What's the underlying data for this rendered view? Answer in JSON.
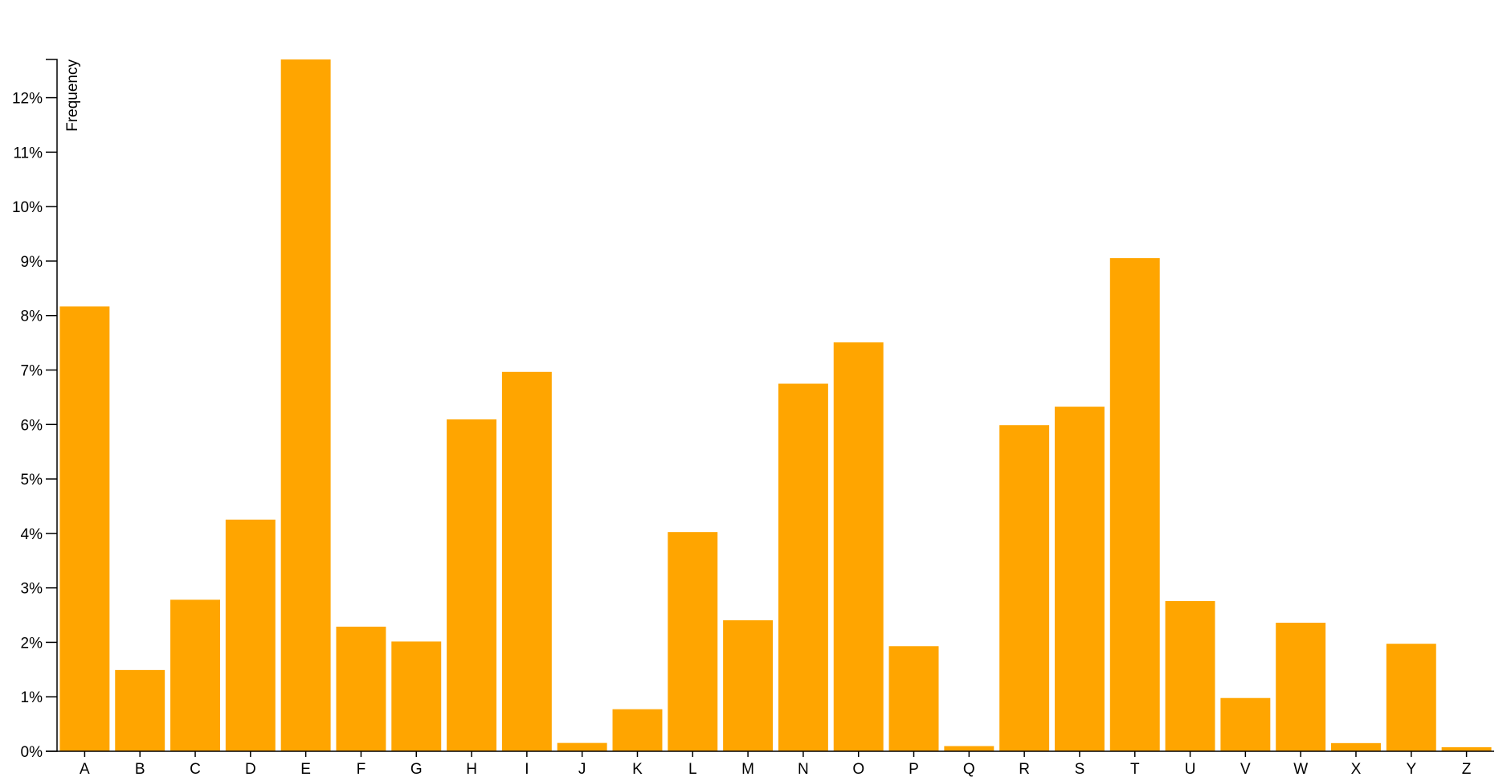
{
  "chart_data": {
    "type": "bar",
    "categories": [
      "A",
      "B",
      "C",
      "D",
      "E",
      "F",
      "G",
      "H",
      "I",
      "J",
      "K",
      "L",
      "M",
      "N",
      "O",
      "P",
      "Q",
      "R",
      "S",
      "T",
      "U",
      "V",
      "W",
      "X",
      "Y",
      "Z"
    ],
    "values": [
      8.167,
      1.492,
      2.782,
      4.253,
      12.702,
      2.288,
      2.015,
      6.094,
      6.966,
      0.153,
      0.772,
      4.025,
      2.406,
      6.749,
      7.507,
      1.929,
      0.095,
      5.987,
      6.327,
      9.056,
      2.758,
      0.978,
      2.36,
      0.15,
      1.974,
      0.074
    ],
    "title": "",
    "xlabel": "",
    "ylabel": "Frequency",
    "ylim": [
      0,
      12.702
    ],
    "yticks": [
      0,
      1,
      2,
      3,
      4,
      5,
      6,
      7,
      8,
      9,
      10,
      11,
      12
    ],
    "ytick_labels": [
      "0%",
      "1%",
      "2%",
      "3%",
      "4%",
      "5%",
      "6%",
      "7%",
      "8%",
      "9%",
      "10%",
      "11%",
      "12%"
    ],
    "grid": false,
    "bar_color": "#FFA500"
  }
}
